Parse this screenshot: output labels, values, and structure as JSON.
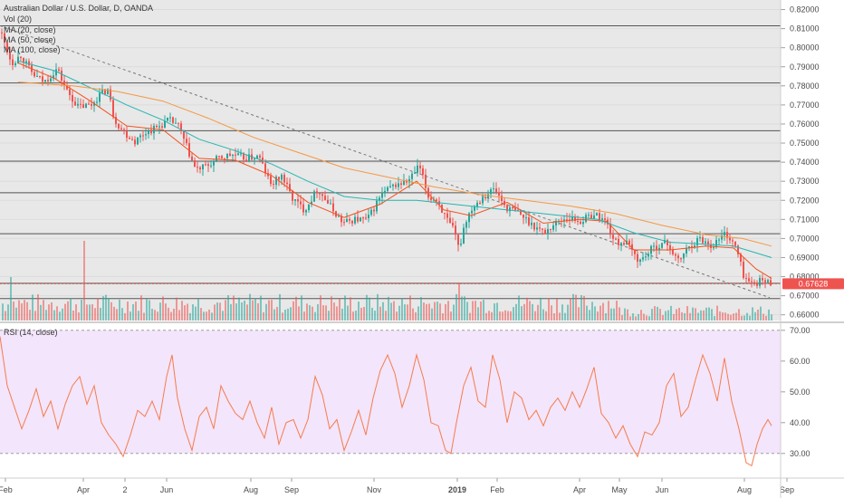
{
  "main_pane": {
    "legend": [
      "Australian Dollar / U.S. Dollar, D, OANDA",
      "Vol (20)",
      "MA (20, close)",
      "MA (50, close)",
      "MA (100, close)"
    ],
    "price_badge": "0.67628",
    "price_badge_color": "#ef5350"
  },
  "rsi_pane": {
    "title": "RSI (14, close)"
  },
  "colors": {
    "up": "#26a69a",
    "down": "#ef5350",
    "ma20": "#f4511e",
    "ma50": "#26b5b0",
    "ma100": "#f59842",
    "rsi_line": "#f57c4d",
    "rsi_band": "#f3e5fb"
  },
  "chart_data": [
    {
      "type": "line",
      "title": "Australian Dollar / U.S. Dollar, D, OANDA",
      "y_ticks": [
        "0.82000",
        "0.81000",
        "0.80000",
        "0.79000",
        "0.78000",
        "0.77000",
        "0.76000",
        "0.75000",
        "0.74000",
        "0.73000",
        "0.72000",
        "0.71000",
        "0.70000",
        "0.69000",
        "0.68000",
        "0.67000",
        "0.66000"
      ],
      "ylim": [
        0.657,
        0.825
      ],
      "x_ticks": [
        "Feb",
        "Apr",
        "2",
        "Jun",
        "Aug",
        "Sep",
        "Nov",
        "2019",
        "Feb",
        "Apr",
        "May",
        "Jun",
        "Aug",
        "Sep"
      ],
      "horizontal_levels": [
        0.8115,
        0.7815,
        0.7565,
        0.7405,
        0.724,
        0.7025,
        0.6765,
        0.6685
      ],
      "trendline": {
        "from": [
          0,
          0.8115
        ],
        "to": [
          850,
          0.669
        ]
      },
      "price_path": [
        [
          0,
          0.808
        ],
        [
          12,
          0.792
        ],
        [
          22,
          0.796
        ],
        [
          35,
          0.786
        ],
        [
          48,
          0.782
        ],
        [
          62,
          0.789
        ],
        [
          72,
          0.778
        ],
        [
          85,
          0.769
        ],
        [
          100,
          0.77
        ],
        [
          110,
          0.776
        ],
        [
          118,
          0.778
        ],
        [
          125,
          0.763
        ],
        [
          135,
          0.756
        ],
        [
          148,
          0.751
        ],
        [
          160,
          0.756
        ],
        [
          172,
          0.758
        ],
        [
          185,
          0.762
        ],
        [
          195,
          0.76
        ],
        [
          205,
          0.748
        ],
        [
          215,
          0.736
        ],
        [
          228,
          0.738
        ],
        [
          240,
          0.742
        ],
        [
          255,
          0.744
        ],
        [
          270,
          0.742
        ],
        [
          285,
          0.743
        ],
        [
          298,
          0.728
        ],
        [
          310,
          0.733
        ],
        [
          322,
          0.721
        ],
        [
          335,
          0.715
        ],
        [
          350,
          0.726
        ],
        [
          365,
          0.716
        ],
        [
          378,
          0.708
        ],
        [
          390,
          0.71
        ],
        [
          405,
          0.71
        ],
        [
          420,
          0.723
        ],
        [
          435,
          0.728
        ],
        [
          450,
          0.73
        ],
        [
          462,
          0.738
        ],
        [
          472,
          0.722
        ],
        [
          482,
          0.72
        ],
        [
          492,
          0.71
        ],
        [
          500,
          0.704
        ],
        [
          506,
          0.694
        ],
        [
          512,
          0.708
        ],
        [
          520,
          0.716
        ],
        [
          532,
          0.722
        ],
        [
          545,
          0.726
        ],
        [
          558,
          0.716
        ],
        [
          570,
          0.714
        ],
        [
          585,
          0.708
        ],
        [
          600,
          0.703
        ],
        [
          612,
          0.708
        ],
        [
          625,
          0.711
        ],
        [
          640,
          0.709
        ],
        [
          655,
          0.713
        ],
        [
          668,
          0.709
        ],
        [
          678,
          0.698
        ],
        [
          690,
          0.698
        ],
        [
          705,
          0.688
        ],
        [
          720,
          0.695
        ],
        [
          735,
          0.698
        ],
        [
          748,
          0.688
        ],
        [
          760,
          0.696
        ],
        [
          772,
          0.7
        ],
        [
          785,
          0.696
        ],
        [
          800,
          0.703
        ],
        [
          812,
          0.695
        ],
        [
          820,
          0.681
        ],
        [
          828,
          0.676
        ],
        [
          840,
          0.678
        ],
        [
          852,
          0.6763
        ]
      ],
      "series": [
        {
          "name": "MA (20, close)",
          "points": [
            [
              20,
              0.792
            ],
            [
              60,
              0.784
            ],
            [
              100,
              0.772
            ],
            [
              140,
              0.759
            ],
            [
              180,
              0.757
            ],
            [
              220,
              0.742
            ],
            [
              260,
              0.741
            ],
            [
              300,
              0.733
            ],
            [
              340,
              0.719
            ],
            [
              380,
              0.711
            ],
            [
              420,
              0.718
            ],
            [
              460,
              0.73
            ],
            [
              490,
              0.715
            ],
            [
              520,
              0.712
            ],
            [
              560,
              0.719
            ],
            [
              600,
              0.708
            ],
            [
              640,
              0.71
            ],
            [
              670,
              0.709
            ],
            [
              700,
              0.694
            ],
            [
              740,
              0.694
            ],
            [
              780,
              0.696
            ],
            [
              810,
              0.695
            ],
            [
              835,
              0.684
            ],
            [
              852,
              0.679
            ]
          ]
        },
        {
          "name": "MA (50, close)",
          "points": [
            [
              20,
              0.793
            ],
            [
              60,
              0.788
            ],
            [
              100,
              0.779
            ],
            [
              140,
              0.77
            ],
            [
              180,
              0.762
            ],
            [
              220,
              0.752
            ],
            [
              260,
              0.746
            ],
            [
              300,
              0.739
            ],
            [
              340,
              0.73
            ],
            [
              380,
              0.722
            ],
            [
              420,
              0.72
            ],
            [
              460,
              0.72
            ],
            [
              500,
              0.718
            ],
            [
              540,
              0.716
            ],
            [
              580,
              0.714
            ],
            [
              620,
              0.712
            ],
            [
              660,
              0.71
            ],
            [
              700,
              0.703
            ],
            [
              740,
              0.698
            ],
            [
              780,
              0.697
            ],
            [
              810,
              0.696
            ],
            [
              852,
              0.69
            ]
          ]
        },
        {
          "name": "MA (100, close)",
          "points": [
            [
              20,
              0.782
            ],
            [
              80,
              0.78
            ],
            [
              130,
              0.777
            ],
            [
              180,
              0.772
            ],
            [
              230,
              0.763
            ],
            [
              280,
              0.753
            ],
            [
              330,
              0.745
            ],
            [
              380,
              0.737
            ],
            [
              430,
              0.732
            ],
            [
              480,
              0.727
            ],
            [
              530,
              0.723
            ],
            [
              580,
              0.72
            ],
            [
              630,
              0.717
            ],
            [
              680,
              0.713
            ],
            [
              730,
              0.707
            ],
            [
              780,
              0.702
            ],
            [
              820,
              0.7
            ],
            [
              852,
              0.696
            ]
          ]
        }
      ]
    },
    {
      "type": "line",
      "title": "RSI (14, close)",
      "y_ticks": [
        "70.00",
        "60.00",
        "50.00",
        "40.00",
        "30.00"
      ],
      "ylim": [
        22,
        72
      ],
      "band": [
        30,
        70
      ],
      "rsi": [
        [
          0,
          68
        ],
        [
          8,
          52
        ],
        [
          16,
          45
        ],
        [
          24,
          38
        ],
        [
          32,
          44
        ],
        [
          40,
          51
        ],
        [
          48,
          42
        ],
        [
          56,
          47
        ],
        [
          64,
          38
        ],
        [
          72,
          46
        ],
        [
          80,
          52
        ],
        [
          88,
          55
        ],
        [
          96,
          46
        ],
        [
          104,
          52
        ],
        [
          112,
          40
        ],
        [
          120,
          36
        ],
        [
          128,
          33
        ],
        [
          136,
          29
        ],
        [
          144,
          36
        ],
        [
          152,
          44
        ],
        [
          160,
          42
        ],
        [
          168,
          47
        ],
        [
          176,
          41
        ],
        [
          184,
          55
        ],
        [
          190,
          62
        ],
        [
          196,
          48
        ],
        [
          204,
          38
        ],
        [
          212,
          31
        ],
        [
          220,
          42
        ],
        [
          228,
          45
        ],
        [
          236,
          38
        ],
        [
          244,
          52
        ],
        [
          252,
          47
        ],
        [
          260,
          43
        ],
        [
          268,
          41
        ],
        [
          276,
          47
        ],
        [
          284,
          40
        ],
        [
          292,
          35
        ],
        [
          300,
          45
        ],
        [
          308,
          33
        ],
        [
          316,
          40
        ],
        [
          324,
          41
        ],
        [
          332,
          35
        ],
        [
          340,
          41
        ],
        [
          348,
          55
        ],
        [
          356,
          49
        ],
        [
          364,
          38
        ],
        [
          372,
          41
        ],
        [
          380,
          31
        ],
        [
          388,
          37
        ],
        [
          396,
          44
        ],
        [
          404,
          36
        ],
        [
          412,
          48
        ],
        [
          420,
          57
        ],
        [
          428,
          62
        ],
        [
          436,
          56
        ],
        [
          444,
          45
        ],
        [
          452,
          52
        ],
        [
          460,
          62
        ],
        [
          468,
          54
        ],
        [
          476,
          40
        ],
        [
          484,
          39
        ],
        [
          492,
          31
        ],
        [
          498,
          30
        ],
        [
          504,
          40
        ],
        [
          512,
          52
        ],
        [
          520,
          58
        ],
        [
          528,
          47
        ],
        [
          536,
          45
        ],
        [
          544,
          62
        ],
        [
          552,
          54
        ],
        [
          560,
          40
        ],
        [
          568,
          50
        ],
        [
          576,
          48
        ],
        [
          584,
          41
        ],
        [
          592,
          44
        ],
        [
          600,
          39
        ],
        [
          608,
          45
        ],
        [
          616,
          48
        ],
        [
          624,
          44
        ],
        [
          632,
          50
        ],
        [
          640,
          45
        ],
        [
          648,
          51
        ],
        [
          656,
          58
        ],
        [
          664,
          43
        ],
        [
          672,
          40
        ],
        [
          680,
          35
        ],
        [
          688,
          39
        ],
        [
          696,
          33
        ],
        [
          704,
          29
        ],
        [
          712,
          37
        ],
        [
          720,
          36
        ],
        [
          728,
          40
        ],
        [
          736,
          52
        ],
        [
          744,
          56
        ],
        [
          752,
          42
        ],
        [
          760,
          45
        ],
        [
          768,
          54
        ],
        [
          776,
          62
        ],
        [
          784,
          56
        ],
        [
          792,
          47
        ],
        [
          800,
          61
        ],
        [
          808,
          47
        ],
        [
          816,
          38
        ],
        [
          824,
          27
        ],
        [
          830,
          26
        ],
        [
          836,
          33
        ],
        [
          842,
          38
        ],
        [
          848,
          41
        ],
        [
          852,
          39
        ]
      ]
    }
  ]
}
